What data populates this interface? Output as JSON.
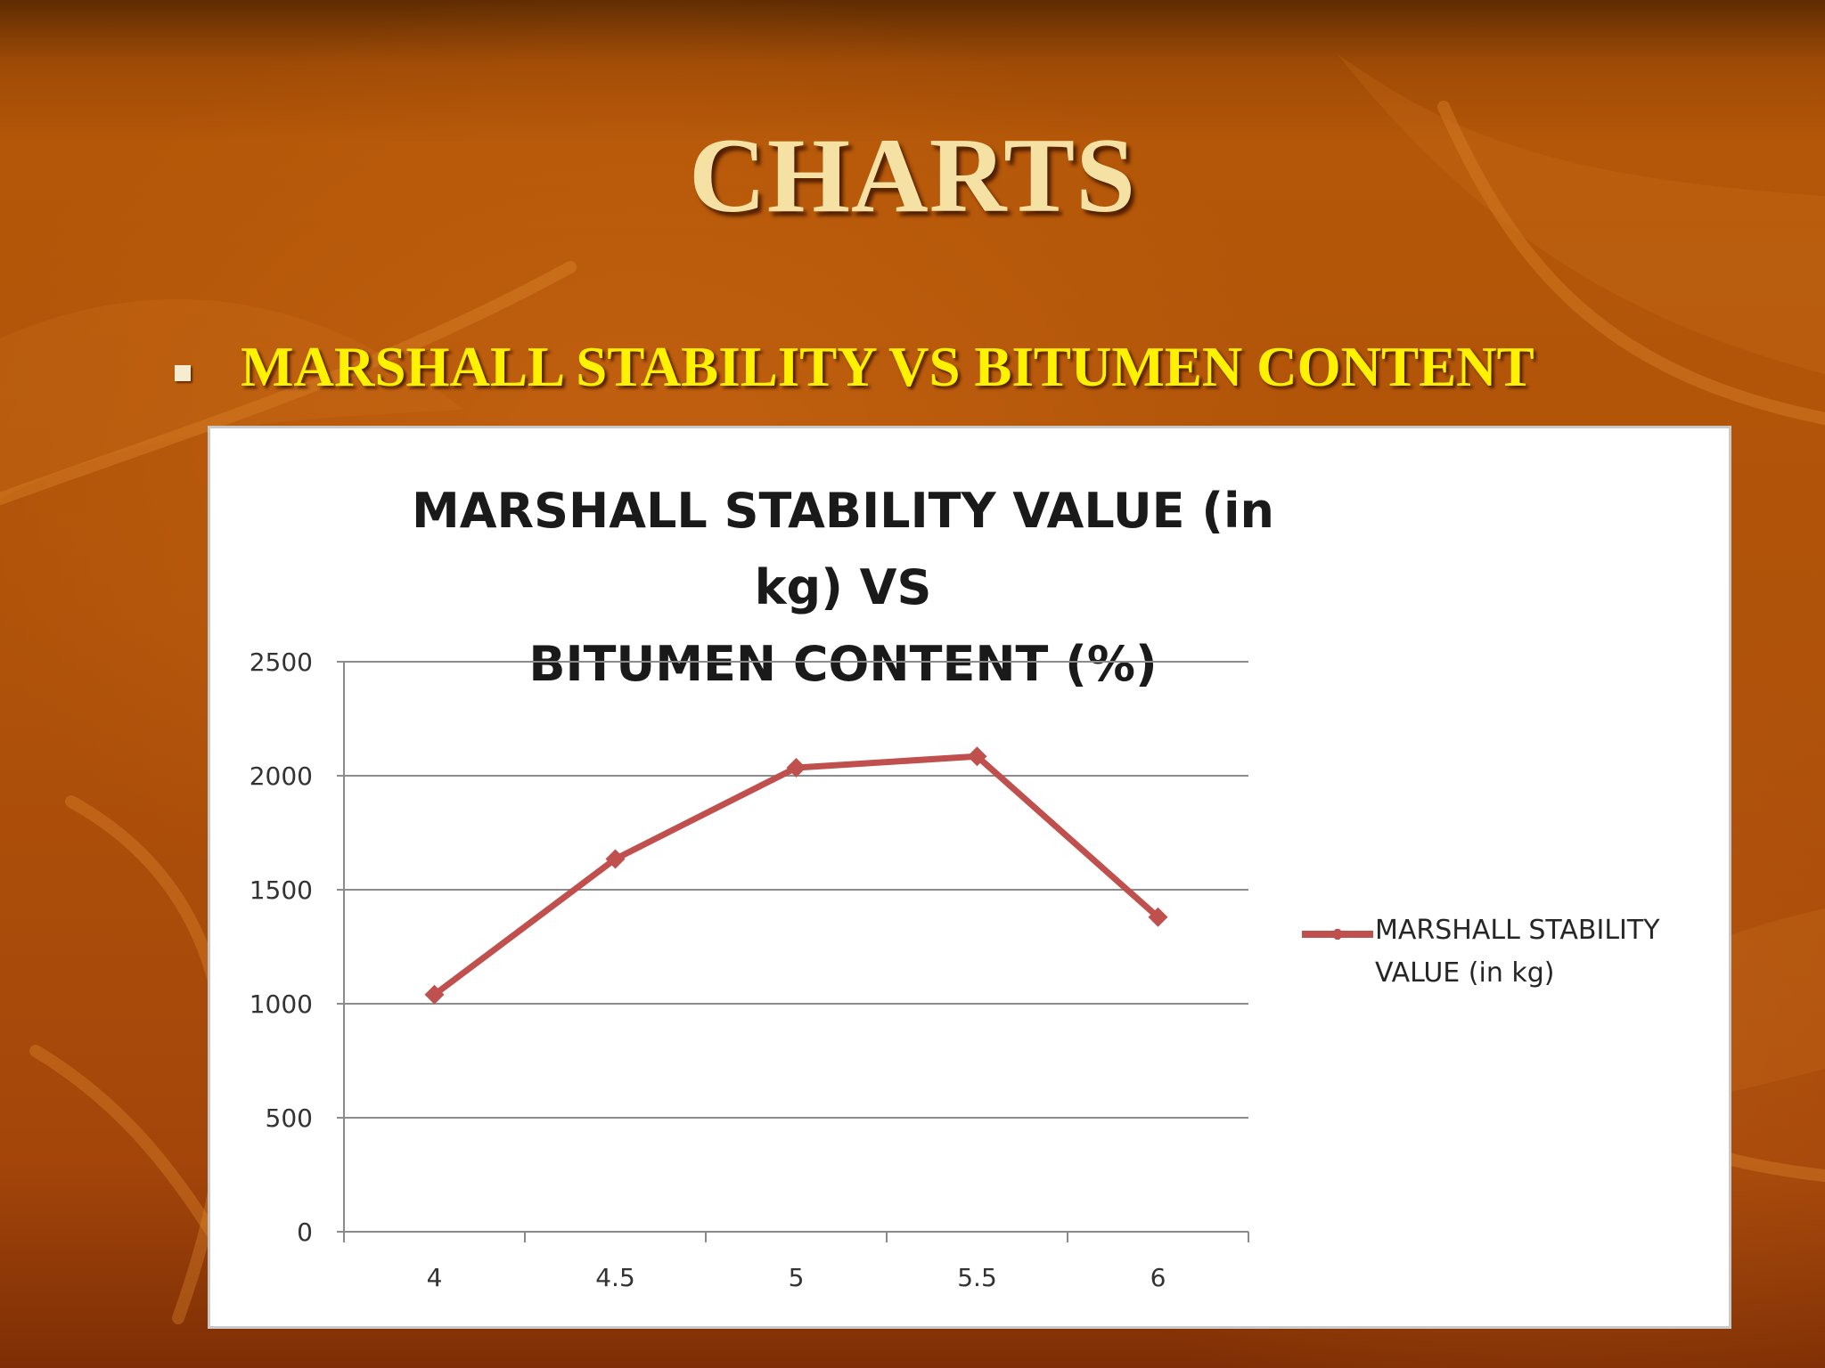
{
  "slide": {
    "title": "CHARTS",
    "bullet": "MARSHALL STABILITY VS BITUMEN CONTENT"
  },
  "colors": {
    "series": "#c0504d",
    "title_text": "#f4e1a3",
    "bullet_text": "#fff200"
  },
  "chart_data": {
    "type": "line",
    "title": "MARSHALL STABILITY VALUE (in kg) VS BITUMEN CONTENT (%)",
    "title_lines": [
      "MARSHALL STABILITY VALUE (in kg) VS",
      "BITUMEN CONTENT (%)"
    ],
    "xlabel": "",
    "ylabel": "",
    "categories": [
      "4",
      "4.5",
      "5",
      "5.5",
      "6"
    ],
    "series": [
      {
        "name": "MARSHALL STABILITY VALUE (in kg)",
        "values": [
          1040,
          1635,
          2035,
          2085,
          1380
        ],
        "marker": "diamond"
      }
    ],
    "ylim": [
      0,
      2500
    ],
    "yticks": [
      0,
      500,
      1000,
      1500,
      2000,
      2500
    ],
    "grid": true,
    "legend": "right"
  }
}
